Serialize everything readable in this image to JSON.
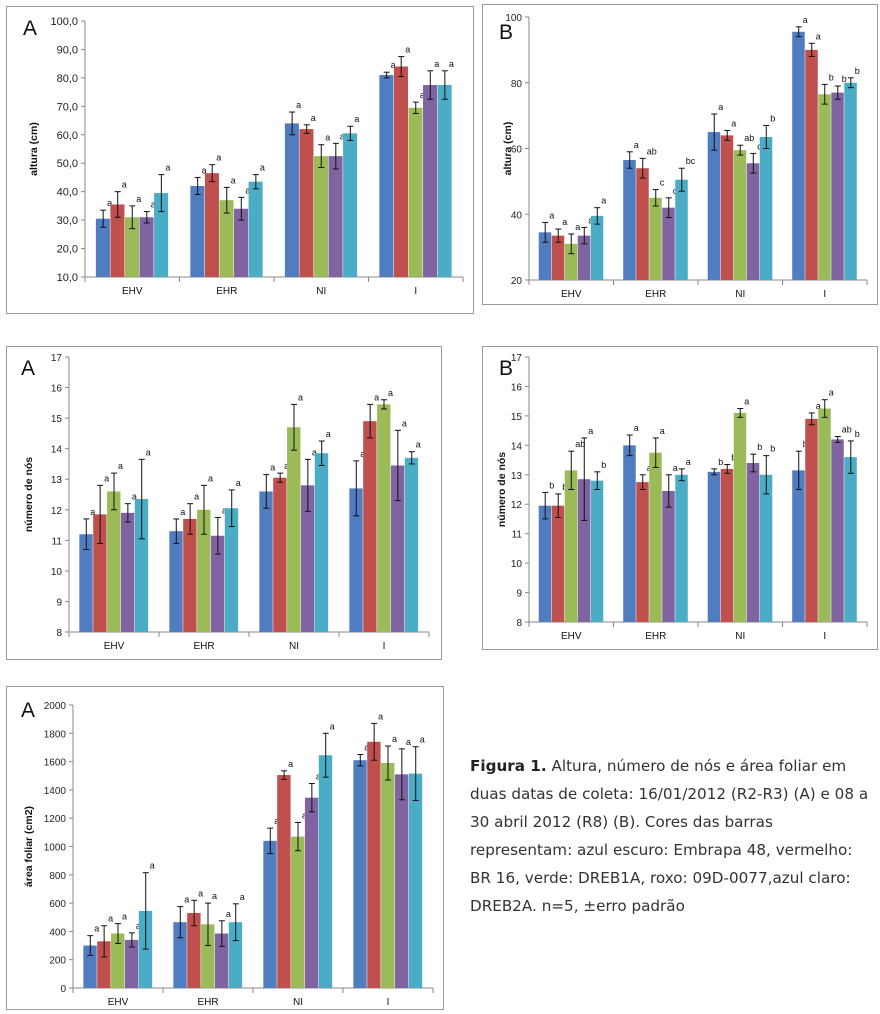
{
  "colors": [
    "#4f7dc0",
    "#c0504d",
    "#9bbb59",
    "#8064a2",
    "#4bacc6"
  ],
  "caption": {
    "label": "Figura 1.",
    "text": "Altura, número de nós e área foliar em duas datas de coleta: 16/01/2012 (R2-R3) (A) e 08 a 30 abril 2012 (R8) (B). Cores das barras representam: azul escuro: Embrapa 48, vermelho: BR 16, verde: DREB1A, roxo: 09D-0077,azul claro: DREB2A. n=5, ±erro padrão"
  },
  "chart_data": [
    {
      "id": "altura-A",
      "type": "bar",
      "panel_label": "A",
      "ylabel": "altura (cm)",
      "categories": [
        "EHV",
        "EHR",
        "NI",
        "I"
      ],
      "ylim": [
        10,
        100
      ],
      "yticks": [
        "10,0",
        "20,0",
        "30,0",
        "40,0",
        "50,0",
        "60,0",
        "70,0",
        "80,0",
        "90,0",
        "100,0"
      ],
      "series": [
        {
          "values": [
            30.5,
            42,
            64,
            81
          ],
          "errors": [
            3,
            3,
            4,
            1
          ],
          "letters": [
            "a",
            "a",
            "a",
            "a"
          ]
        },
        {
          "values": [
            35.5,
            46.5,
            62,
            84
          ],
          "errors": [
            4.5,
            3,
            1.5,
            3.5
          ],
          "letters": [
            "a",
            "a",
            "a",
            "a"
          ]
        },
        {
          "values": [
            31,
            37,
            52.5,
            69.5
          ],
          "errors": [
            4,
            4.5,
            4,
            2
          ],
          "letters": [
            "a",
            "a",
            "a",
            "a"
          ]
        },
        {
          "values": [
            31,
            34,
            52.5,
            77.5
          ],
          "errors": [
            2,
            4,
            4.5,
            5
          ],
          "letters": [
            "a",
            "a",
            "a",
            "a"
          ]
        },
        {
          "values": [
            39.5,
            43.5,
            60.5,
            77.5
          ],
          "errors": [
            6.5,
            2.5,
            2.5,
            5
          ],
          "letters": [
            "a",
            "a",
            "a",
            "a"
          ]
        }
      ]
    },
    {
      "id": "altura-B",
      "type": "bar",
      "panel_label": "B",
      "ylabel": "altura (cm)",
      "categories": [
        "EHV",
        "EHR",
        "NI",
        "I"
      ],
      "ylim": [
        20,
        100
      ],
      "yticks": [
        "20",
        "40",
        "60",
        "80",
        "100"
      ],
      "series": [
        {
          "values": [
            34.5,
            56.5,
            65,
            95.5
          ],
          "errors": [
            3,
            2.5,
            5.5,
            1.5
          ],
          "letters": [
            "a",
            "a",
            "a",
            "a"
          ]
        },
        {
          "values": [
            33.5,
            54,
            64,
            90
          ],
          "errors": [
            2,
            3,
            1.5,
            2
          ],
          "letters": [
            "a",
            "ab",
            "a",
            "a"
          ]
        },
        {
          "values": [
            31,
            45,
            59.5,
            76.5
          ],
          "errors": [
            3,
            2.5,
            1.5,
            3
          ],
          "letters": [
            "a",
            "c",
            "ab",
            "b"
          ]
        },
        {
          "values": [
            33.5,
            42,
            55.5,
            77
          ],
          "errors": [
            2.5,
            3,
            3,
            2
          ],
          "letters": [
            "a",
            "c",
            "c",
            "b"
          ]
        },
        {
          "values": [
            39.5,
            50.5,
            63.5,
            80
          ],
          "errors": [
            2.5,
            3.5,
            3.5,
            1.5
          ],
          "letters": [
            "a",
            "bc",
            "b",
            "b"
          ]
        }
      ]
    },
    {
      "id": "nos-A",
      "type": "bar",
      "panel_label": "A",
      "ylabel": "número de nós",
      "categories": [
        "EHV",
        "EHR",
        "NI",
        "I"
      ],
      "ylim": [
        8,
        17
      ],
      "yticks": [
        "8",
        "9",
        "10",
        "11",
        "12",
        "13",
        "14",
        "15",
        "16",
        "17"
      ],
      "series": [
        {
          "values": [
            11.2,
            11.3,
            12.6,
            12.7
          ],
          "errors": [
            0.5,
            0.4,
            0.55,
            0.9
          ],
          "letters": [
            "a",
            "a",
            "a",
            "a"
          ]
        },
        {
          "values": [
            11.85,
            11.7,
            13.05,
            14.9
          ],
          "errors": [
            0.95,
            0.5,
            0.15,
            0.55
          ],
          "letters": [
            "a",
            "a",
            "a",
            "a"
          ]
        },
        {
          "values": [
            12.6,
            12.0,
            14.7,
            15.45
          ],
          "errors": [
            0.6,
            0.8,
            0.75,
            0.15
          ],
          "letters": [
            "a",
            "a",
            "a",
            "a"
          ]
        },
        {
          "values": [
            11.9,
            11.15,
            12.8,
            13.45
          ],
          "errors": [
            0.3,
            0.6,
            0.85,
            1.15
          ],
          "letters": [
            "a",
            "a",
            "a",
            "a"
          ]
        },
        {
          "values": [
            12.35,
            12.05,
            13.85,
            13.7
          ],
          "errors": [
            1.3,
            0.6,
            0.4,
            0.2
          ],
          "letters": [
            "a",
            "a",
            "a",
            "a"
          ]
        }
      ]
    },
    {
      "id": "nos-B",
      "type": "bar",
      "panel_label": "B",
      "ylabel": "número de nós",
      "categories": [
        "EHV",
        "EHR",
        "NI",
        "I"
      ],
      "ylim": [
        8,
        17
      ],
      "yticks": [
        "8",
        "9",
        "10",
        "11",
        "12",
        "13",
        "14",
        "15",
        "16",
        "17"
      ],
      "series": [
        {
          "values": [
            11.95,
            14.0,
            13.1,
            13.15
          ],
          "errors": [
            0.45,
            0.35,
            0.1,
            0.65
          ],
          "letters": [
            "b",
            "a",
            "b",
            "b"
          ]
        },
        {
          "values": [
            11.95,
            12.75,
            13.2,
            14.9
          ],
          "errors": [
            0.4,
            0.25,
            0.15,
            0.2
          ],
          "letters": [
            "b",
            "a",
            "b",
            "a"
          ]
        },
        {
          "values": [
            13.15,
            13.75,
            15.1,
            15.25
          ],
          "errors": [
            0.65,
            0.5,
            0.15,
            0.3
          ],
          "letters": [
            "ab",
            "a",
            "a",
            "a"
          ]
        },
        {
          "values": [
            12.85,
            12.45,
            13.4,
            14.2
          ],
          "errors": [
            1.4,
            0.55,
            0.3,
            0.1
          ],
          "letters": [
            "a",
            "a",
            "b",
            "ab"
          ]
        },
        {
          "values": [
            12.8,
            13.0,
            13.0,
            13.6
          ],
          "errors": [
            0.3,
            0.2,
            0.65,
            0.55
          ],
          "letters": [
            "b",
            "a",
            "b",
            "b"
          ]
        }
      ]
    },
    {
      "id": "area-A",
      "type": "bar",
      "panel_label": "A",
      "ylabel": "área foliar (cm2)",
      "categories": [
        "EHV",
        "EHR",
        "NI",
        "I"
      ],
      "ylim": [
        0,
        2000
      ],
      "yticks": [
        "0",
        "200",
        "400",
        "600",
        "800",
        "1000",
        "1200",
        "1400",
        "1600",
        "1800",
        "2000"
      ],
      "series": [
        {
          "values": [
            300,
            465,
            1040,
            1610
          ],
          "errors": [
            70,
            110,
            90,
            40
          ],
          "letters": [
            "a",
            "a",
            "a",
            "a"
          ]
        },
        {
          "values": [
            330,
            530,
            1505,
            1740
          ],
          "errors": [
            110,
            90,
            30,
            130
          ],
          "letters": [
            "a",
            "a",
            "a",
            "a"
          ]
        },
        {
          "values": [
            385,
            450,
            1070,
            1590
          ],
          "errors": [
            70,
            150,
            100,
            120
          ],
          "letters": [
            "a",
            "a",
            "a",
            "a"
          ]
        },
        {
          "values": [
            340,
            385,
            1345,
            1510
          ],
          "errors": [
            50,
            90,
            100,
            180
          ],
          "letters": [
            "a",
            "a",
            "a",
            "a"
          ]
        },
        {
          "values": [
            545,
            465,
            1645,
            1515
          ],
          "errors": [
            270,
            130,
            155,
            190
          ],
          "letters": [
            "a",
            "a",
            "a",
            "a"
          ]
        }
      ]
    }
  ]
}
